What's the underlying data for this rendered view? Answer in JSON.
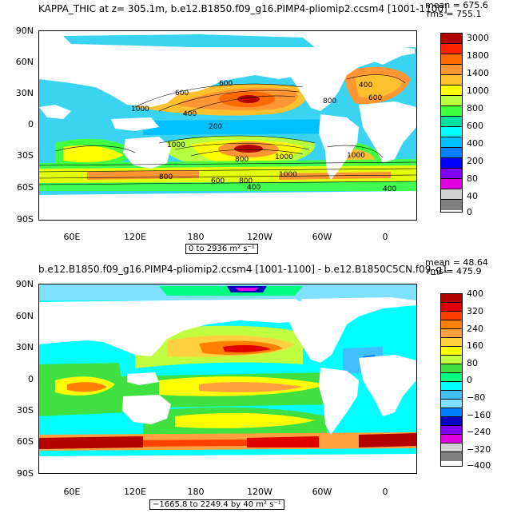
{
  "panel1": {
    "title": "KAPPA_THIC at z= 305.1m, b.e12.B1850.f09_g16.PIMP4-pliomip2.ccsm4 [1001-1100]",
    "mean": "mean = 675.6",
    "rms": "rms = 755.1",
    "range": "0 to 2936 m² s⁻¹",
    "yticks": [
      "90N",
      "60N",
      "30N",
      "0",
      "30S",
      "60S",
      "90S"
    ],
    "xticks": [
      "60E",
      "120E",
      "180",
      "120W",
      "60W",
      "0"
    ],
    "contour_labels": [
      "600",
      "1000",
      "800",
      "600",
      "400",
      "200",
      "800",
      "1000",
      "1000",
      "1000",
      "800",
      "1000",
      "800",
      "600",
      "400",
      "400",
      "600",
      "400"
    ],
    "colorbar": {
      "labels": [
        "3000",
        "1800",
        "1400",
        "1000",
        "800",
        "600",
        "400",
        "200",
        "80",
        "40",
        "0"
      ],
      "colors": [
        "#b30000",
        "#ff2000",
        "#ff6a00",
        "#ff9633",
        "#ffc030",
        "#ffff00",
        "#b8ff40",
        "#40ff40",
        "#00e0a0",
        "#00ffff",
        "#00c0ff",
        "#0080ff",
        "#0000ff",
        "#8000ff",
        "#e000e0",
        "#d0d0d0",
        "#808080"
      ]
    }
  },
  "panel2": {
    "title": "b.e12.B1850.f09_g16.PIMP4-pliomip2.ccsm4 [1001-1100] - b.e12.B1850C5CN.f09_g1",
    "mean": "mean = 48.64",
    "rms": "rms = 475.9",
    "range": "−1665.8 to 2249.4 by 40 m² s⁻¹",
    "yticks": [
      "90N",
      "60N",
      "30N",
      "0",
      "30S",
      "60S",
      "90S"
    ],
    "xticks": [
      "60E",
      "120E",
      "180",
      "120W",
      "60W",
      "0"
    ],
    "colorbar": {
      "labels": [
        "400",
        "320",
        "240",
        "160",
        "80",
        "0",
        "−80",
        "−160",
        "−240",
        "−320",
        "−400"
      ],
      "colors": [
        "#b30000",
        "#e00000",
        "#ff4000",
        "#ff8000",
        "#ffa040",
        "#ffd040",
        "#ffff00",
        "#c0ff40",
        "#40e040",
        "#00ff80",
        "#00ffff",
        "#40c0ff",
        "#80e0ff",
        "#0080ff",
        "#0000c0",
        "#8000ff",
        "#e000e0",
        "#d0d0d0",
        "#808080"
      ]
    }
  }
}
